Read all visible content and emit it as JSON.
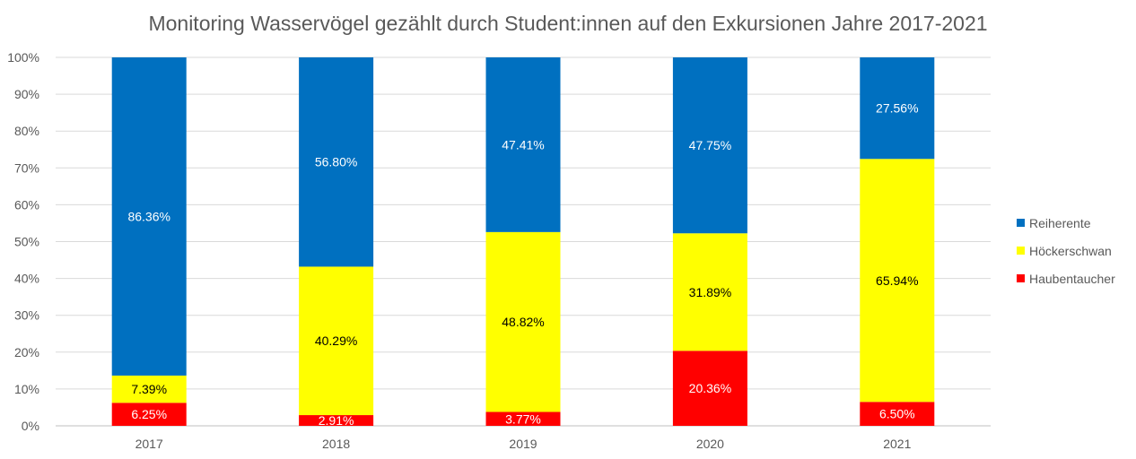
{
  "chart_data": {
    "type": "bar",
    "stacked": true,
    "title": "Monitoring Wasservögel gezählt durch Student:innen auf den Exkursionen Jahre 2017-2021",
    "categories": [
      "2017",
      "2018",
      "2019",
      "2020",
      "2021"
    ],
    "series": [
      {
        "name": "Haubentaucher",
        "color": "#ff0000",
        "values": [
          6.25,
          2.91,
          3.77,
          20.36,
          6.5
        ],
        "labels": [
          "6.25%",
          "2.91%",
          "3.77%",
          "20.36%",
          "6.50%"
        ],
        "label_color": "#ffffff"
      },
      {
        "name": "Höckerschwan",
        "color": "#ffff00",
        "values": [
          7.39,
          40.29,
          48.82,
          31.89,
          65.94
        ],
        "labels": [
          "7.39%",
          "40.29%",
          "48.82%",
          "31.89%",
          "65.94%"
        ],
        "label_color": "#000000"
      },
      {
        "name": "Reiherente",
        "color": "#0070c0",
        "values": [
          86.36,
          56.8,
          47.41,
          47.75,
          27.56
        ],
        "labels": [
          "86.36%",
          "56.80%",
          "47.41%",
          "47.75%",
          "27.56%"
        ],
        "label_color": "#ffffff"
      }
    ],
    "ylim": [
      0,
      100
    ],
    "yticks": [
      "0%",
      "10%",
      "20%",
      "30%",
      "40%",
      "50%",
      "60%",
      "70%",
      "80%",
      "90%",
      "100%"
    ],
    "grid": true,
    "legend": "right",
    "legend_order": [
      "Reiherente",
      "Höckerschwan",
      "Haubentaucher"
    ]
  }
}
